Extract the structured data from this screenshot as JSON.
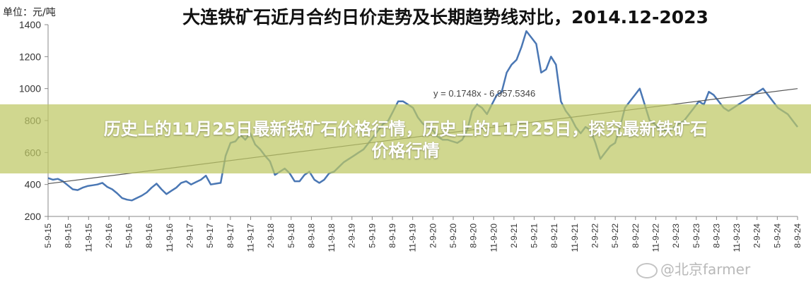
{
  "chart_data": {
    "type": "line",
    "title": "大连铁矿石近月合约日价走势及长期趋势线对比，2014.12-2023",
    "unit_label": "单位：元/吨",
    "ylim": [
      200,
      1400
    ],
    "yticks": [
      200,
      400,
      600,
      800,
      1000,
      1200,
      1400
    ],
    "grid": false,
    "x_tick_labels": [
      "5-9-15",
      "8-9-15",
      "11-9-15",
      "2-9-16",
      "5-9-16",
      "8-9-16",
      "11-9-16",
      "2-9-17",
      "5-9-17",
      "8-9-17",
      "11-9-17",
      "2-9-18",
      "5-9-18",
      "8-9-18",
      "11-9-18",
      "2-9-19",
      "5-9-19",
      "8-9-19",
      "11-9-19",
      "2-9-20",
      "5-9-20",
      "8-9-20",
      "11-9-20",
      "2-9-21",
      "5-9-21",
      "8-9-21",
      "11-9-21",
      "2-9-22",
      "5-9-22",
      "8-9-22",
      "11-9-22",
      "2-9-23",
      "5-9-23",
      "8-9-23",
      "11-9-23",
      "2-9-24",
      "5-9-24",
      "8-9-24"
    ],
    "trend_equation": "y = 0.1748x - 6,957.5346",
    "trend_line": {
      "start": 405,
      "end": 1000
    },
    "series": [
      {
        "color": "#4a77b4",
        "values": [
          440,
          430,
          435,
          420,
          395,
          370,
          365,
          380,
          390,
          395,
          400,
          410,
          385,
          370,
          345,
          315,
          305,
          300,
          315,
          330,
          350,
          380,
          405,
          370,
          340,
          360,
          380,
          410,
          420,
          400,
          415,
          430,
          455,
          400,
          405,
          410,
          580,
          660,
          670,
          710,
          680,
          720,
          650,
          620,
          580,
          545,
          460,
          480,
          500,
          470,
          420,
          420,
          460,
          480,
          430,
          410,
          430,
          470,
          480,
          510,
          540,
          560,
          580,
          600,
          620,
          660,
          700,
          740,
          780,
          800,
          860,
          920,
          920,
          900,
          880,
          820,
          780,
          760,
          740,
          700,
          680,
          680,
          670,
          660,
          680,
          740,
          860,
          900,
          880,
          840,
          900,
          960,
          980,
          1100,
          1150,
          1180,
          1260,
          1360,
          1320,
          1280,
          1100,
          1120,
          1200,
          1150,
          920,
          860,
          820,
          760,
          720,
          760,
          740,
          660,
          560,
          600,
          640,
          660,
          760,
          880,
          920,
          960,
          1000,
          900,
          800,
          780,
          740,
          740,
          740,
          760,
          780,
          800,
          840,
          880,
          920,
          900,
          980,
          960,
          920,
          880,
          860,
          880,
          900,
          920,
          940,
          960,
          980,
          1000,
          960,
          920,
          880,
          860,
          840,
          800,
          760
        ]
      }
    ]
  },
  "banner": {
    "line1": "历史上的11月25日最新铁矿石价格行情，历史上的11月25日，探究最新铁矿石",
    "line2": "价格行情"
  },
  "watermark": {
    "text": "@北京farmer"
  }
}
